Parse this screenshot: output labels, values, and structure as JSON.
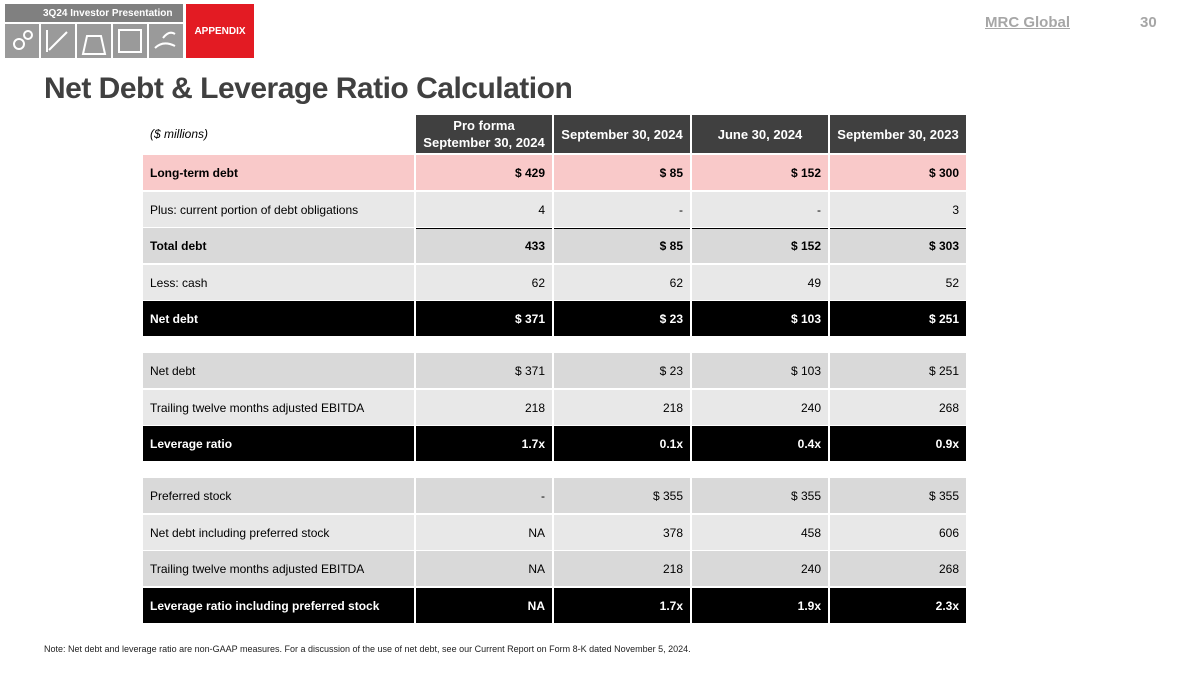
{
  "header": {
    "tab": "3Q24 Investor Presentation",
    "section": "APPENDIX",
    "logo": "MRC Global",
    "page": "30"
  },
  "title": "Net Debt & Leverage Ratio Calculation",
  "table": {
    "unit": "($ millions)",
    "columns": [
      "Pro forma\nSeptember 30, 2024",
      "September 30, 2024",
      "June 30, 2024",
      "September 30, 2023"
    ],
    "rows": [
      {
        "label": "Long-term debt",
        "values": [
          "$ 429",
          "$ 85",
          "$ 152",
          "$ 300"
        ]
      },
      {
        "label": "Plus: current portion of debt obligations",
        "values": [
          "4",
          "-",
          "-",
          "3"
        ]
      },
      {
        "label": "Total debt",
        "values": [
          "433",
          "$ 85",
          "$ 152",
          "$ 303"
        ]
      },
      {
        "label": "Less: cash",
        "values": [
          "62",
          "62",
          "49",
          "52"
        ]
      },
      {
        "label": "Net debt",
        "values": [
          "$ 371",
          "$ 23",
          "$ 103",
          "$ 251"
        ]
      },
      {
        "label": "Net debt",
        "values": [
          "$ 371",
          "$ 23",
          "$ 103",
          "$ 251"
        ]
      },
      {
        "label": "Trailing twelve months adjusted EBITDA",
        "values": [
          "218",
          "218",
          "240",
          "268"
        ]
      },
      {
        "label": "Leverage ratio",
        "values": [
          "1.7x",
          "0.1x",
          "0.4x",
          "0.9x"
        ]
      },
      {
        "label": "Preferred stock",
        "values": [
          "-",
          "$ 355",
          "$ 355",
          "$ 355"
        ]
      },
      {
        "label": "Net debt including preferred stock",
        "values": [
          "NA",
          "378",
          "458",
          "606"
        ]
      },
      {
        "label": "Trailing twelve months adjusted EBITDA",
        "values": [
          "NA",
          "218",
          "240",
          "268"
        ]
      },
      {
        "label": "Leverage ratio including preferred stock",
        "values": [
          "NA",
          "1.7x",
          "1.9x",
          "2.3x"
        ]
      }
    ]
  },
  "note": "Note: Net debt and leverage ratio are non-GAAP measures. For a discussion of the use of net debt, see our Current Report on Form 8-K dated November 5, 2024."
}
